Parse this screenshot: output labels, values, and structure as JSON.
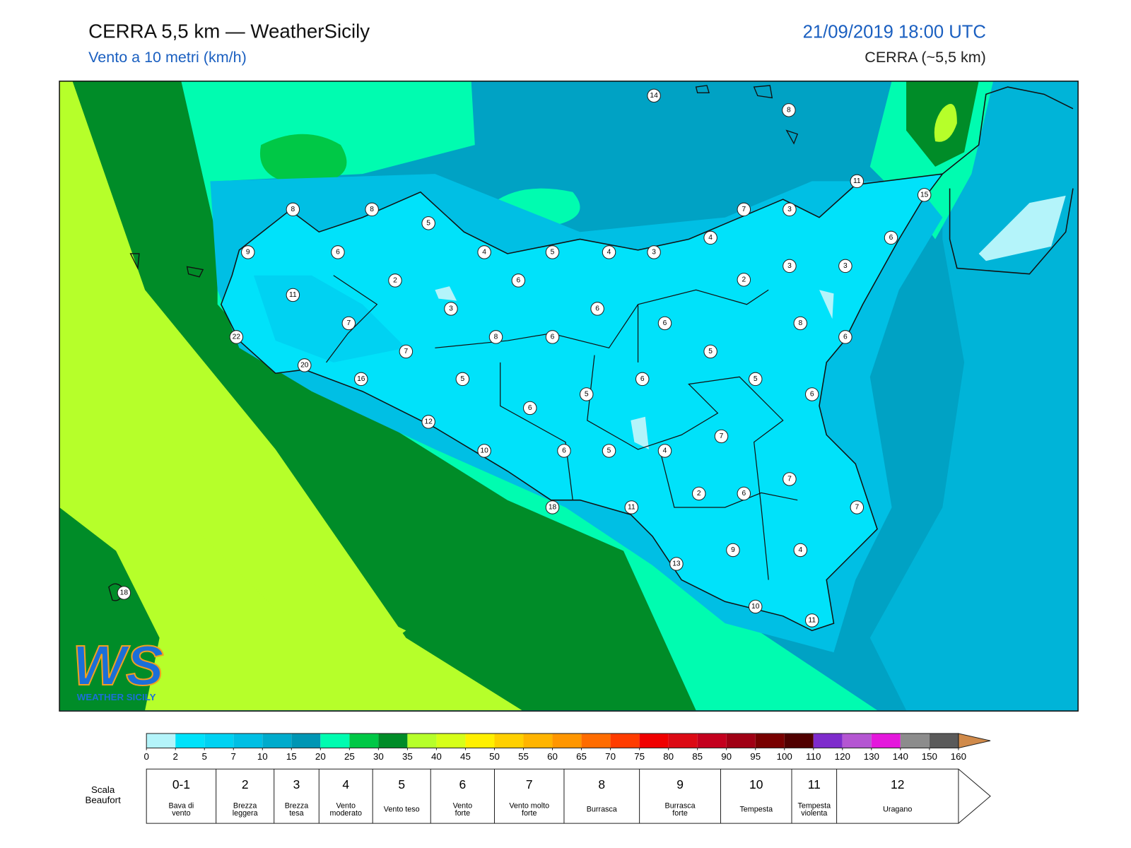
{
  "header": {
    "title": "CERRA 5,5 km — WeatherSicily",
    "subtitle": "Vento a 10 metri (km/h)",
    "datetime": "21/09/2019 18:00 UTC",
    "model": "CERRA (~5,5 km)"
  },
  "map": {
    "station_values": [
      14,
      8,
      11,
      15,
      8,
      8,
      5,
      7,
      3,
      6,
      9,
      6,
      4,
      5,
      4,
      3,
      4,
      3,
      3,
      2,
      2,
      6,
      11,
      3,
      6,
      7,
      6,
      8,
      22,
      8,
      6,
      6,
      7,
      5,
      20,
      16,
      5,
      6,
      5,
      5,
      6,
      6,
      12,
      7,
      10,
      6,
      5,
      4,
      7,
      2,
      6,
      18,
      11,
      7,
      9,
      4,
      13,
      18,
      10,
      11
    ]
  },
  "logo": {
    "mark": "WS",
    "text": "WEATHER SICILY"
  },
  "colorbar": {
    "ticks": [
      0,
      2,
      5,
      7,
      10,
      15,
      20,
      25,
      30,
      35,
      40,
      45,
      50,
      55,
      60,
      65,
      70,
      75,
      80,
      85,
      90,
      95,
      100,
      110,
      120,
      130,
      140,
      150,
      160
    ],
    "colors": [
      "#b4f4fa",
      "#00e2fa",
      "#00d2f2",
      "#00bfe4",
      "#00abcc",
      "#0096b4",
      "#00fcb0",
      "#00c846",
      "#008c28",
      "#b6ff2a",
      "#d6ff18",
      "#fff000",
      "#ffd000",
      "#ffb400",
      "#ff9600",
      "#ff6c00",
      "#ff3c00",
      "#f00000",
      "#dc0a14",
      "#c4001e",
      "#a00014",
      "#780000",
      "#500000",
      "#7e2ccc",
      "#b456d2",
      "#e418dc",
      "#8c8c8c",
      "#5a5a5a",
      "#000000",
      "#8a4a2a",
      "#d08a4a"
    ]
  },
  "beaufort": {
    "title": [
      "Scala",
      "Beaufort"
    ],
    "levels": [
      {
        "number": "0-1",
        "label": [
          "Bava di",
          "vento"
        ]
      },
      {
        "number": "2",
        "label": [
          "Brezza",
          "leggera"
        ]
      },
      {
        "number": "3",
        "label": [
          "Brezza",
          "tesa"
        ]
      },
      {
        "number": "4",
        "label": [
          "Vento",
          "moderato"
        ]
      },
      {
        "number": "5",
        "label": [
          "Vento teso"
        ]
      },
      {
        "number": "6",
        "label": [
          "Vento",
          "forte"
        ]
      },
      {
        "number": "7",
        "label": [
          "Vento molto",
          "forte"
        ]
      },
      {
        "number": "8",
        "label": [
          "Burrasca"
        ]
      },
      {
        "number": "9",
        "label": [
          "Burrasca",
          "forte"
        ]
      },
      {
        "number": "10",
        "label": [
          "Tempesta"
        ]
      },
      {
        "number": "11",
        "label": [
          "Tempesta",
          "violenta"
        ]
      },
      {
        "number": "12",
        "label": [
          "Uragano"
        ]
      }
    ]
  }
}
